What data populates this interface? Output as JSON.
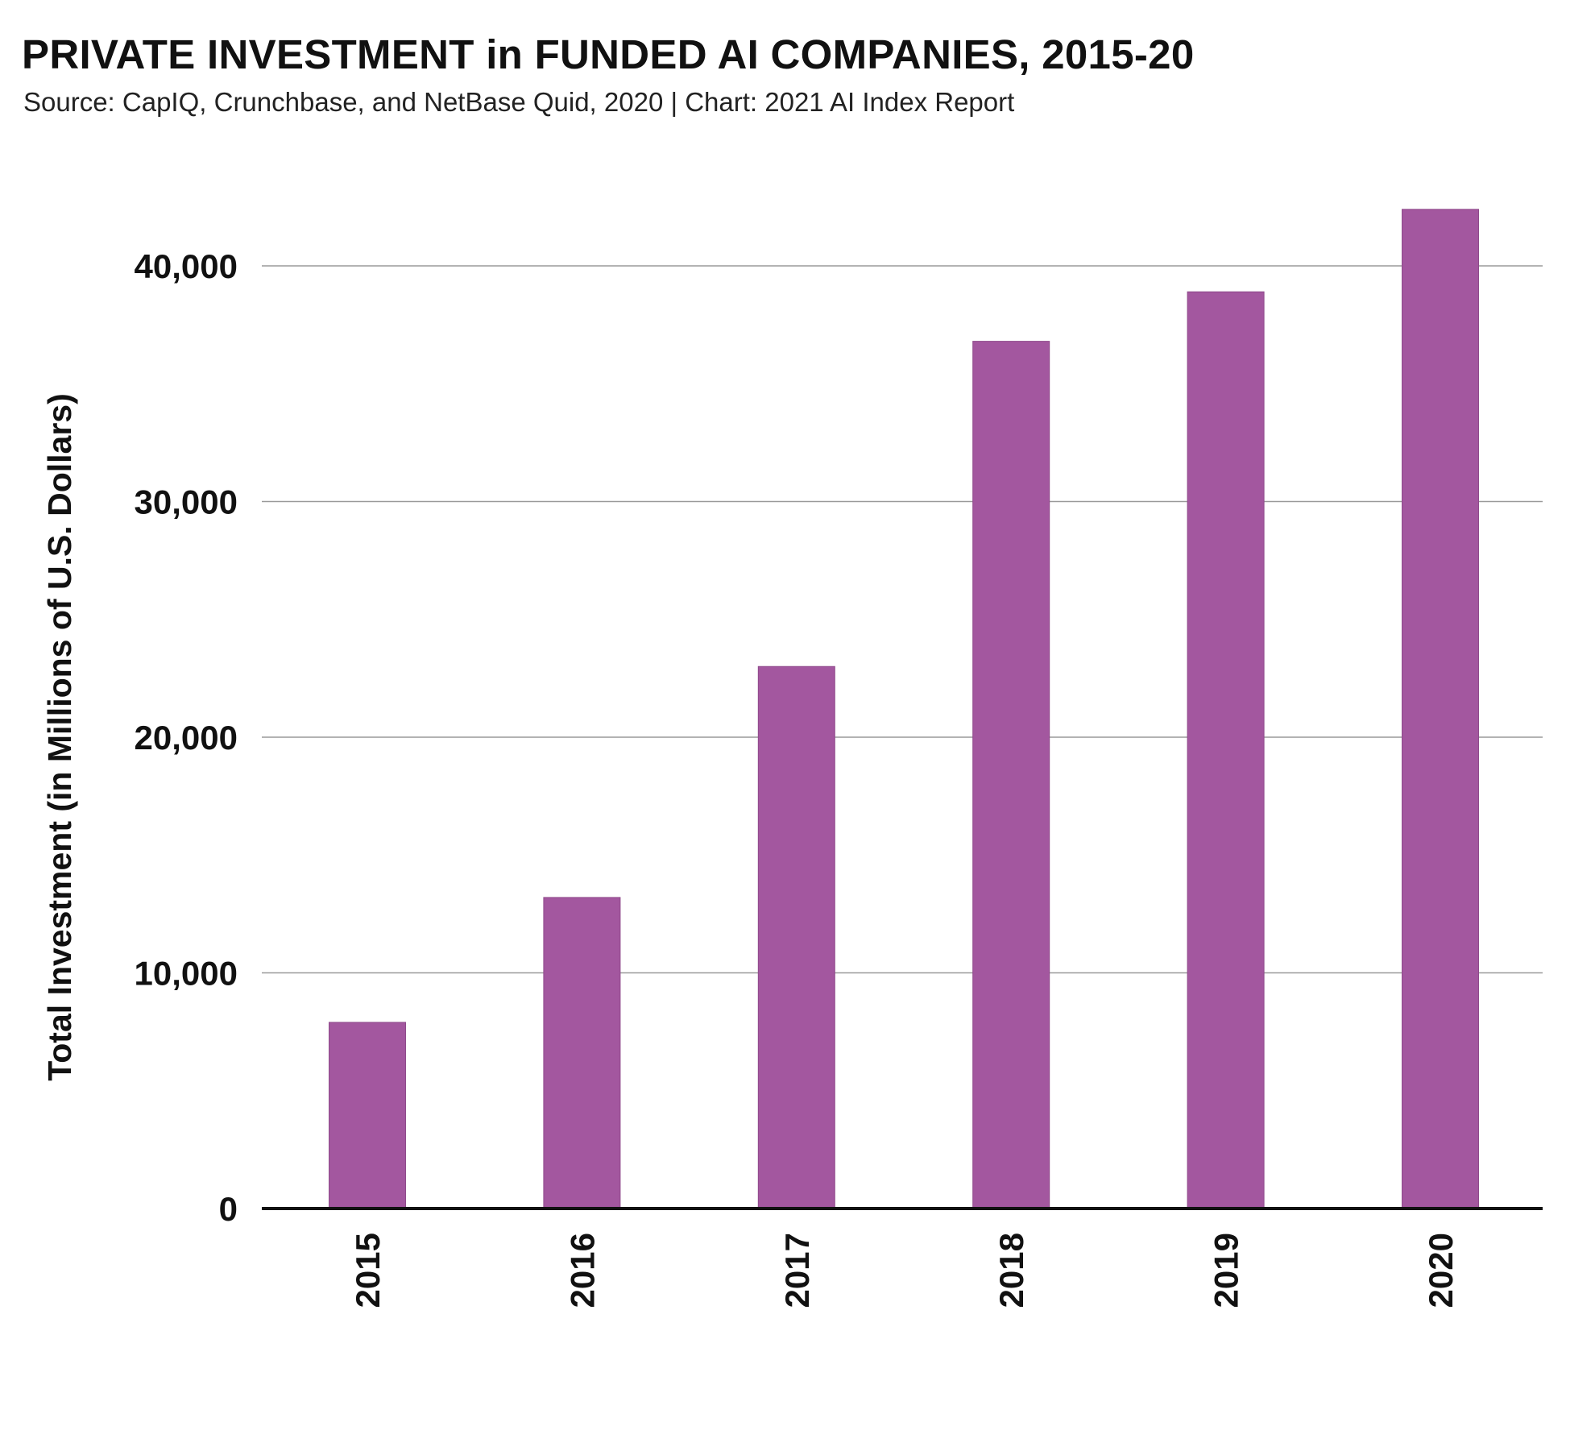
{
  "header": {
    "title": "PRIVATE INVESTMENT in FUNDED AI COMPANIES, 2015-20",
    "subtitle": "Source: CapIQ, Crunchbase, and NetBase Quid, 2020 | Chart: 2021 AI Index Report"
  },
  "colors": {
    "bar": "#a3579f",
    "gridline": "#9a9a9a",
    "axis": "#111111"
  },
  "chart_data": {
    "type": "bar",
    "title": "PRIVATE INVESTMENT in FUNDED AI COMPANIES, 2015-20",
    "subtitle": "Source: CapIQ, Crunchbase, and NetBase Quid, 2020 | Chart: 2021 AI Index Report",
    "xlabel": "",
    "ylabel": "Total Investment (in Millions of U.S. Dollars)",
    "categories": [
      "2015",
      "2016",
      "2017",
      "2018",
      "2019",
      "2020"
    ],
    "values": [
      7900,
      13200,
      23000,
      36800,
      38900,
      42400
    ],
    "ylim": [
      0,
      40000
    ],
    "yticks": [
      0,
      10000,
      20000,
      30000,
      40000
    ],
    "ytick_labels": [
      "0",
      "10,000",
      "20,000",
      "30,000",
      "40,000"
    ],
    "grid": true,
    "legend": "none"
  }
}
